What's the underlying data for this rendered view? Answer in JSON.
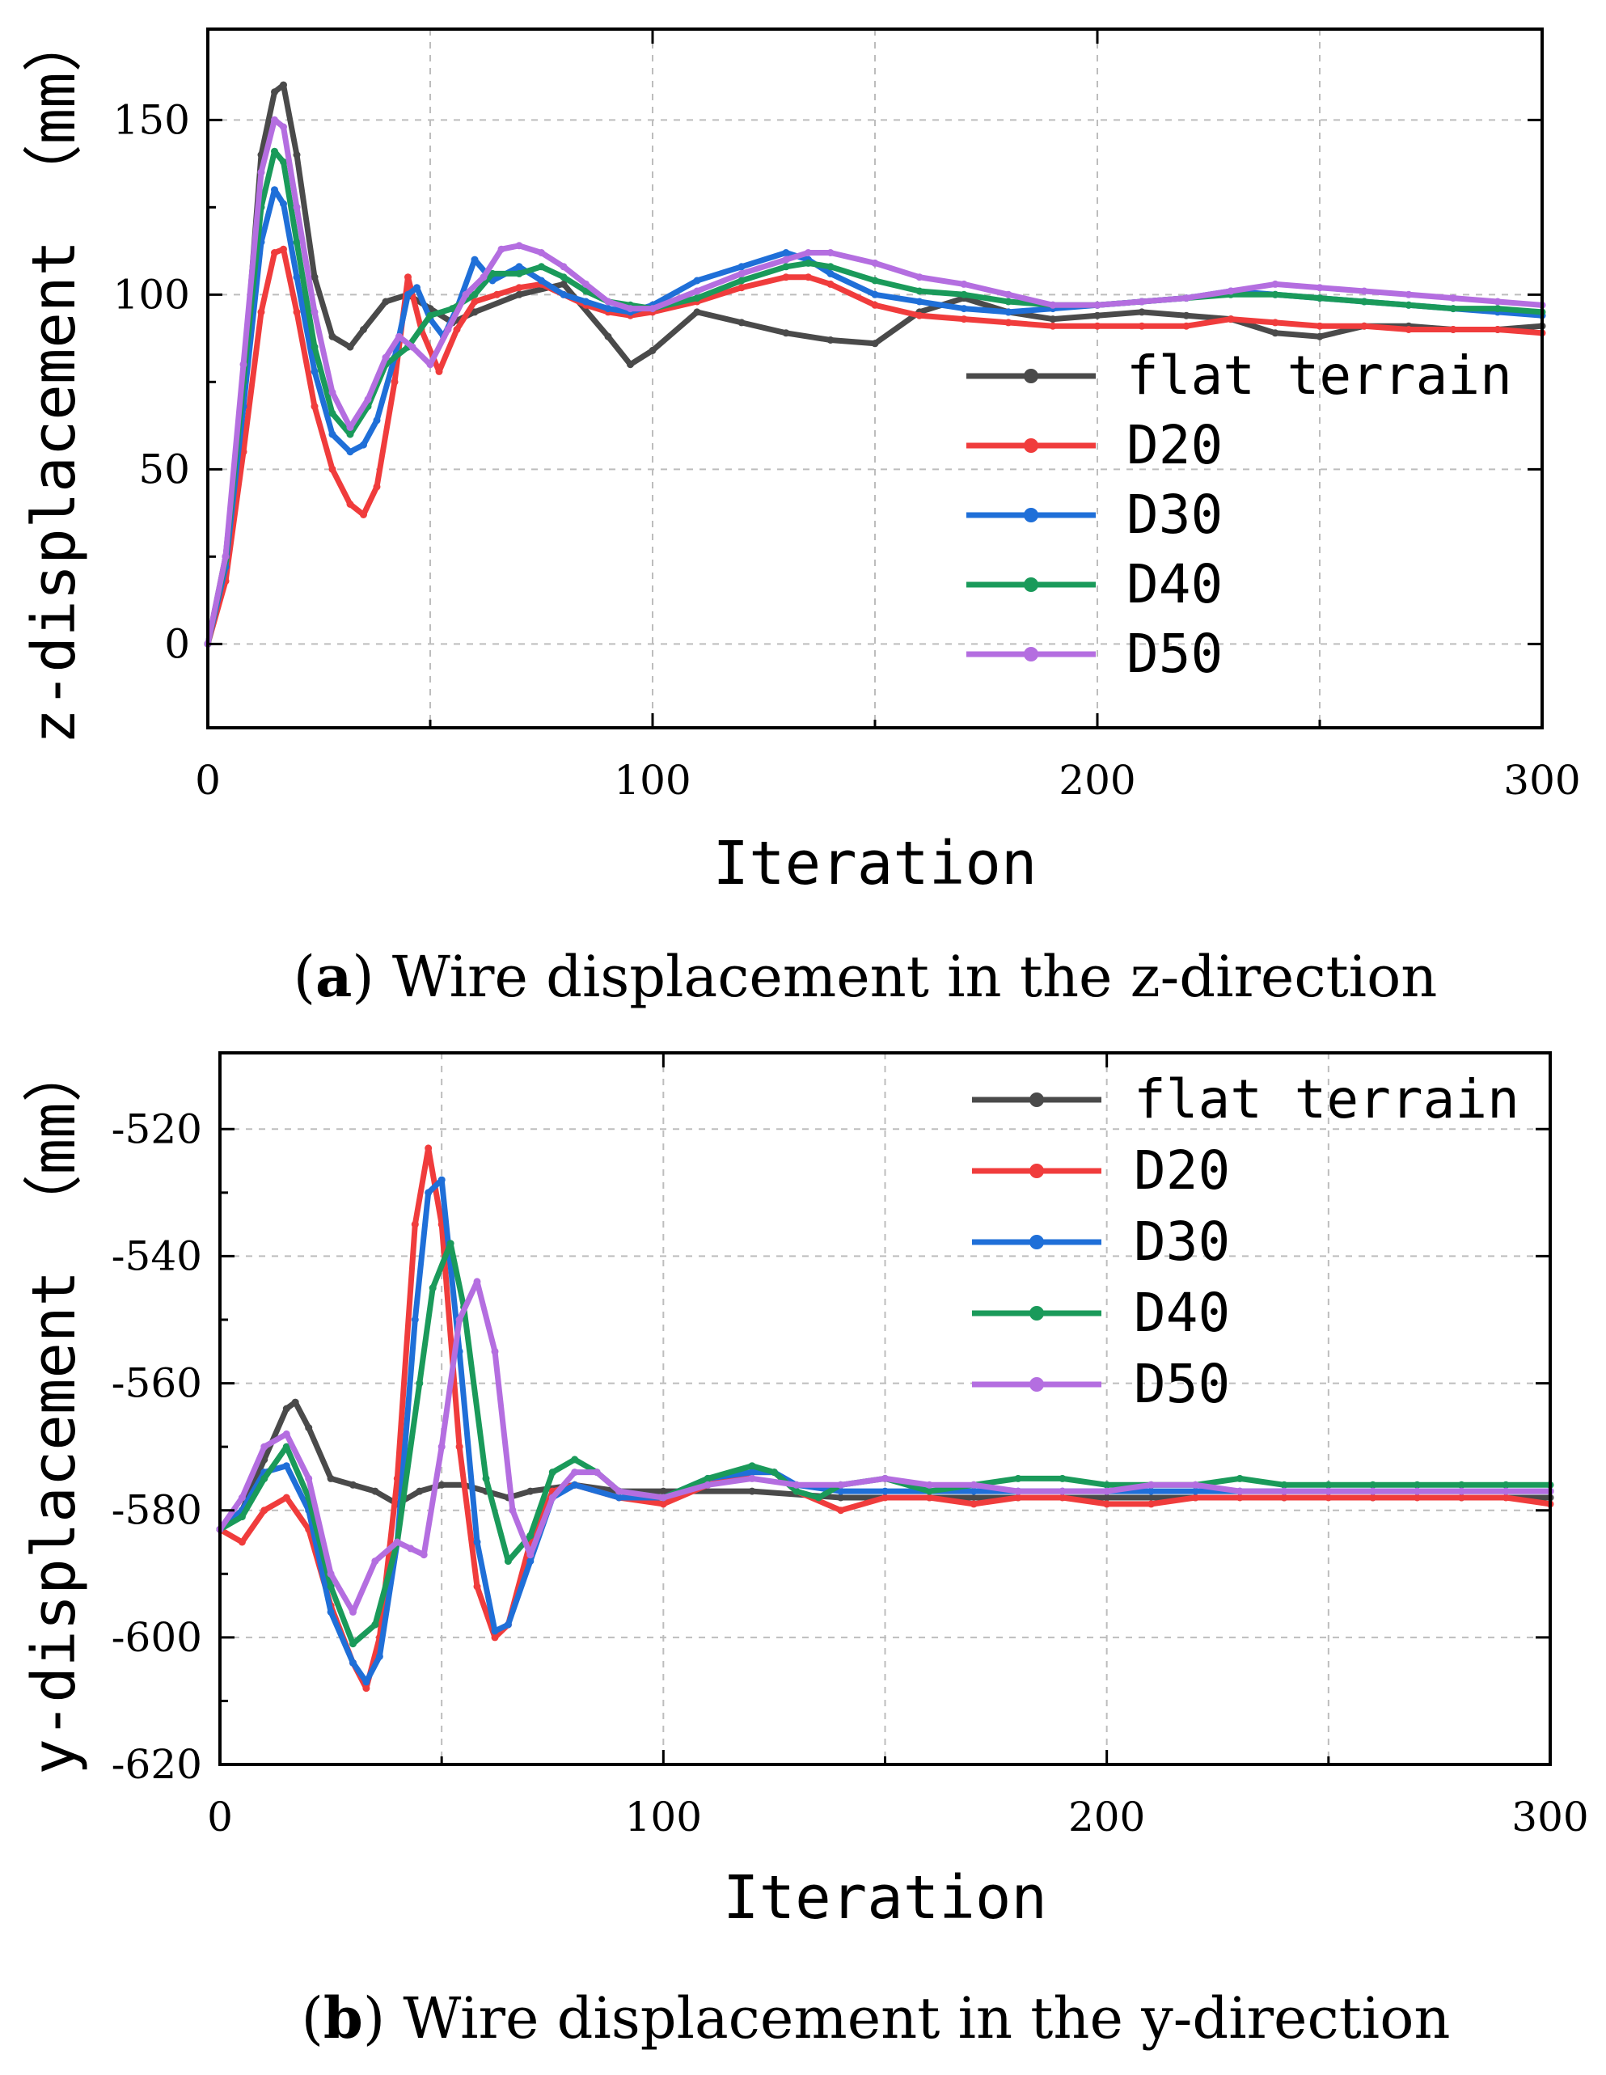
{
  "chart_data": [
    {
      "type": "line",
      "panel_letter": "a",
      "caption": "Wire displacement in the z-direction",
      "xlabel": "Iteration",
      "ylabel": "z-displacement （mm）",
      "xlim": [
        0,
        300
      ],
      "ylim": [
        -24,
        176
      ],
      "xticks": [
        0,
        100,
        200,
        300
      ],
      "yticks": [
        0,
        50,
        100,
        150
      ],
      "legend_position": "right",
      "series": [
        {
          "name": "flat terrain",
          "color": "#4a4a4a",
          "marker": "square",
          "x": [
            0,
            4,
            8,
            12,
            15,
            17,
            20,
            24,
            28,
            32,
            35,
            40,
            45,
            50,
            55,
            60,
            70,
            80,
            90,
            95,
            100,
            110,
            120,
            130,
            140,
            150,
            160,
            170,
            180,
            190,
            200,
            210,
            220,
            230,
            240,
            250,
            260,
            270,
            280,
            290,
            300
          ],
          "y": [
            0,
            25,
            75,
            140,
            158,
            160,
            140,
            105,
            88,
            85,
            90,
            98,
            100,
            96,
            92,
            95,
            100,
            103,
            88,
            80,
            84,
            95,
            92,
            89,
            87,
            86,
            95,
            99,
            95,
            93,
            94,
            95,
            94,
            93,
            89,
            88,
            91,
            91,
            90,
            90,
            91
          ]
        },
        {
          "name": "D20",
          "color": "#f03c3c",
          "marker": "circle",
          "x": [
            0,
            4,
            8,
            12,
            15,
            17,
            20,
            24,
            28,
            32,
            35,
            38,
            42,
            45,
            48,
            52,
            56,
            60,
            65,
            70,
            75,
            80,
            85,
            90,
            95,
            100,
            110,
            120,
            130,
            135,
            140,
            150,
            160,
            170,
            180,
            190,
            200,
            210,
            220,
            230,
            240,
            250,
            260,
            270,
            280,
            290,
            300
          ],
          "y": [
            0,
            18,
            55,
            95,
            112,
            113,
            95,
            68,
            50,
            40,
            37,
            45,
            75,
            105,
            90,
            78,
            90,
            98,
            100,
            102,
            103,
            100,
            97,
            95,
            94,
            95,
            98,
            102,
            105,
            105,
            103,
            97,
            94,
            93,
            92,
            91,
            91,
            91,
            91,
            93,
            92,
            91,
            91,
            90,
            90,
            90,
            89
          ]
        },
        {
          "name": "D30",
          "color": "#1f6fd8",
          "marker": "triangle-up",
          "x": [
            0,
            4,
            8,
            12,
            15,
            17,
            20,
            24,
            28,
            32,
            35,
            38,
            42,
            45,
            47,
            50,
            53,
            56,
            60,
            64,
            70,
            75,
            80,
            85,
            90,
            95,
            100,
            110,
            120,
            130,
            135,
            140,
            150,
            160,
            170,
            180,
            190,
            200,
            210,
            220,
            230,
            240,
            250,
            260,
            270,
            280,
            290,
            300
          ],
          "y": [
            0,
            22,
            68,
            115,
            130,
            126,
            105,
            78,
            60,
            55,
            57,
            64,
            82,
            100,
            102,
            93,
            88,
            96,
            110,
            104,
            108,
            104,
            100,
            98,
            96,
            95,
            97,
            104,
            108,
            112,
            110,
            106,
            100,
            98,
            96,
            95,
            96,
            97,
            98,
            99,
            101,
            100,
            99,
            98,
            97,
            96,
            95,
            94
          ]
        },
        {
          "name": "D40",
          "color": "#1a9a5a",
          "marker": "triangle-down",
          "x": [
            0,
            4,
            8,
            12,
            15,
            17,
            20,
            24,
            28,
            32,
            36,
            40,
            45,
            50,
            55,
            60,
            64,
            70,
            75,
            80,
            85,
            90,
            95,
            100,
            110,
            120,
            130,
            135,
            140,
            150,
            160,
            170,
            180,
            190,
            200,
            210,
            220,
            230,
            240,
            250,
            260,
            270,
            280,
            290,
            300
          ],
          "y": [
            0,
            24,
            75,
            125,
            141,
            138,
            115,
            85,
            66,
            60,
            68,
            80,
            85,
            94,
            96,
            100,
            106,
            106,
            108,
            105,
            101,
            98,
            97,
            96,
            99,
            104,
            108,
            109,
            108,
            104,
            101,
            100,
            98,
            97,
            97,
            98,
            99,
            100,
            100,
            99,
            98,
            97,
            96,
            96,
            95
          ]
        },
        {
          "name": "D50",
          "color": "#b46ee0",
          "marker": "diamond",
          "x": [
            0,
            4,
            8,
            12,
            15,
            17,
            20,
            24,
            28,
            32,
            36,
            40,
            43,
            46,
            50,
            54,
            58,
            62,
            66,
            70,
            75,
            80,
            85,
            90,
            95,
            100,
            110,
            120,
            130,
            135,
            140,
            150,
            160,
            170,
            180,
            190,
            200,
            210,
            220,
            230,
            240,
            250,
            260,
            270,
            280,
            290,
            300
          ],
          "y": [
            0,
            25,
            80,
            135,
            150,
            148,
            125,
            95,
            72,
            62,
            70,
            82,
            88,
            85,
            80,
            90,
            100,
            105,
            113,
            114,
            112,
            108,
            103,
            98,
            96,
            96,
            101,
            106,
            110,
            112,
            112,
            109,
            105,
            103,
            100,
            97,
            97,
            98,
            99,
            101,
            103,
            102,
            101,
            100,
            99,
            98,
            97
          ]
        }
      ]
    },
    {
      "type": "line",
      "panel_letter": "b",
      "caption": "Wire displacement in the y-direction",
      "xlabel": "Iteration",
      "ylabel": "y-displacement （mm）",
      "xlim": [
        0,
        300
      ],
      "ylim": [
        -620,
        -508
      ],
      "xticks": [
        0,
        100,
        200,
        300
      ],
      "yticks": [
        -620,
        -600,
        -580,
        -560,
        -540,
        -520
      ],
      "legend_position": "top-right",
      "series": [
        {
          "name": "flat terrain",
          "color": "#4a4a4a",
          "marker": "square",
          "x": [
            0,
            5,
            10,
            15,
            17,
            20,
            25,
            30,
            35,
            40,
            45,
            50,
            55,
            60,
            65,
            70,
            80,
            90,
            100,
            120,
            140,
            160,
            180,
            200,
            220,
            240,
            260,
            280,
            300
          ],
          "y": [
            -583,
            -580,
            -572,
            -564,
            -563,
            -567,
            -575,
            -576,
            -577,
            -579,
            -577,
            -576,
            -576,
            -577,
            -578,
            -577,
            -576,
            -577,
            -577,
            -577,
            -578,
            -578,
            -578,
            -578,
            -578,
            -578,
            -578,
            -578,
            -578
          ]
        },
        {
          "name": "D20",
          "color": "#f03c3c",
          "marker": "circle",
          "x": [
            0,
            5,
            10,
            15,
            20,
            25,
            30,
            33,
            36,
            40,
            44,
            47,
            50,
            54,
            58,
            62,
            65,
            70,
            75,
            80,
            90,
            100,
            110,
            120,
            125,
            130,
            140,
            150,
            160,
            170,
            180,
            190,
            200,
            210,
            220,
            230,
            240,
            250,
            260,
            270,
            280,
            290,
            300
          ],
          "y": [
            -583,
            -585,
            -580,
            -578,
            -583,
            -595,
            -604,
            -608,
            -600,
            -575,
            -535,
            -523,
            -535,
            -570,
            -592,
            -600,
            -598,
            -585,
            -577,
            -576,
            -578,
            -579,
            -576,
            -574,
            -574,
            -577,
            -580,
            -578,
            -578,
            -579,
            -578,
            -578,
            -579,
            -579,
            -578,
            -578,
            -578,
            -578,
            -578,
            -578,
            -578,
            -578,
            -579
          ]
        },
        {
          "name": "D30",
          "color": "#1f6fd8",
          "marker": "triangle-up",
          "x": [
            0,
            5,
            10,
            15,
            20,
            25,
            30,
            33,
            36,
            40,
            44,
            47,
            50,
            54,
            58,
            62,
            65,
            70,
            75,
            80,
            90,
            100,
            110,
            120,
            125,
            130,
            140,
            150,
            160,
            170,
            180,
            190,
            200,
            210,
            220,
            230,
            240,
            250,
            260,
            270,
            280,
            290,
            300
          ],
          "y": [
            -583,
            -580,
            -574,
            -573,
            -580,
            -596,
            -604,
            -607,
            -603,
            -585,
            -550,
            -530,
            -528,
            -555,
            -585,
            -599,
            -598,
            -588,
            -578,
            -576,
            -578,
            -578,
            -575,
            -574,
            -574,
            -576,
            -577,
            -577,
            -577,
            -577,
            -577,
            -577,
            -577,
            -577,
            -577,
            -577,
            -577,
            -577,
            -577,
            -577,
            -577,
            -577,
            -577
          ]
        },
        {
          "name": "D40",
          "color": "#1a9a5a",
          "marker": "triangle-down",
          "x": [
            0,
            5,
            10,
            15,
            20,
            25,
            30,
            35,
            40,
            45,
            48,
            52,
            55,
            60,
            65,
            70,
            75,
            80,
            85,
            90,
            100,
            110,
            120,
            125,
            130,
            135,
            140,
            150,
            160,
            170,
            180,
            190,
            200,
            210,
            220,
            230,
            240,
            250,
            260,
            270,
            280,
            290,
            300
          ],
          "y": [
            -583,
            -581,
            -575,
            -570,
            -578,
            -592,
            -601,
            -598,
            -585,
            -560,
            -545,
            -538,
            -548,
            -575,
            -588,
            -584,
            -574,
            -572,
            -574,
            -577,
            -578,
            -575,
            -573,
            -574,
            -577,
            -578,
            -576,
            -575,
            -577,
            -576,
            -575,
            -575,
            -576,
            -576,
            -576,
            -575,
            -576,
            -576,
            -576,
            -576,
            -576,
            -576,
            -576
          ]
        },
        {
          "name": "D50",
          "color": "#b46ee0",
          "marker": "diamond",
          "x": [
            0,
            5,
            10,
            15,
            20,
            25,
            30,
            35,
            40,
            43,
            46,
            50,
            54,
            58,
            62,
            66,
            70,
            75,
            80,
            85,
            90,
            100,
            110,
            120,
            130,
            140,
            150,
            160,
            170,
            180,
            190,
            200,
            210,
            220,
            230,
            240,
            250,
            260,
            270,
            280,
            290,
            300
          ],
          "y": [
            -583,
            -578,
            -570,
            -568,
            -575,
            -590,
            -596,
            -588,
            -585,
            -586,
            -587,
            -570,
            -550,
            -544,
            -555,
            -580,
            -587,
            -578,
            -574,
            -574,
            -577,
            -578,
            -576,
            -575,
            -576,
            -576,
            -575,
            -576,
            -576,
            -577,
            -577,
            -577,
            -576,
            -576,
            -577,
            -577,
            -577,
            -577,
            -577,
            -577,
            -577,
            -577
          ]
        }
      ]
    }
  ]
}
